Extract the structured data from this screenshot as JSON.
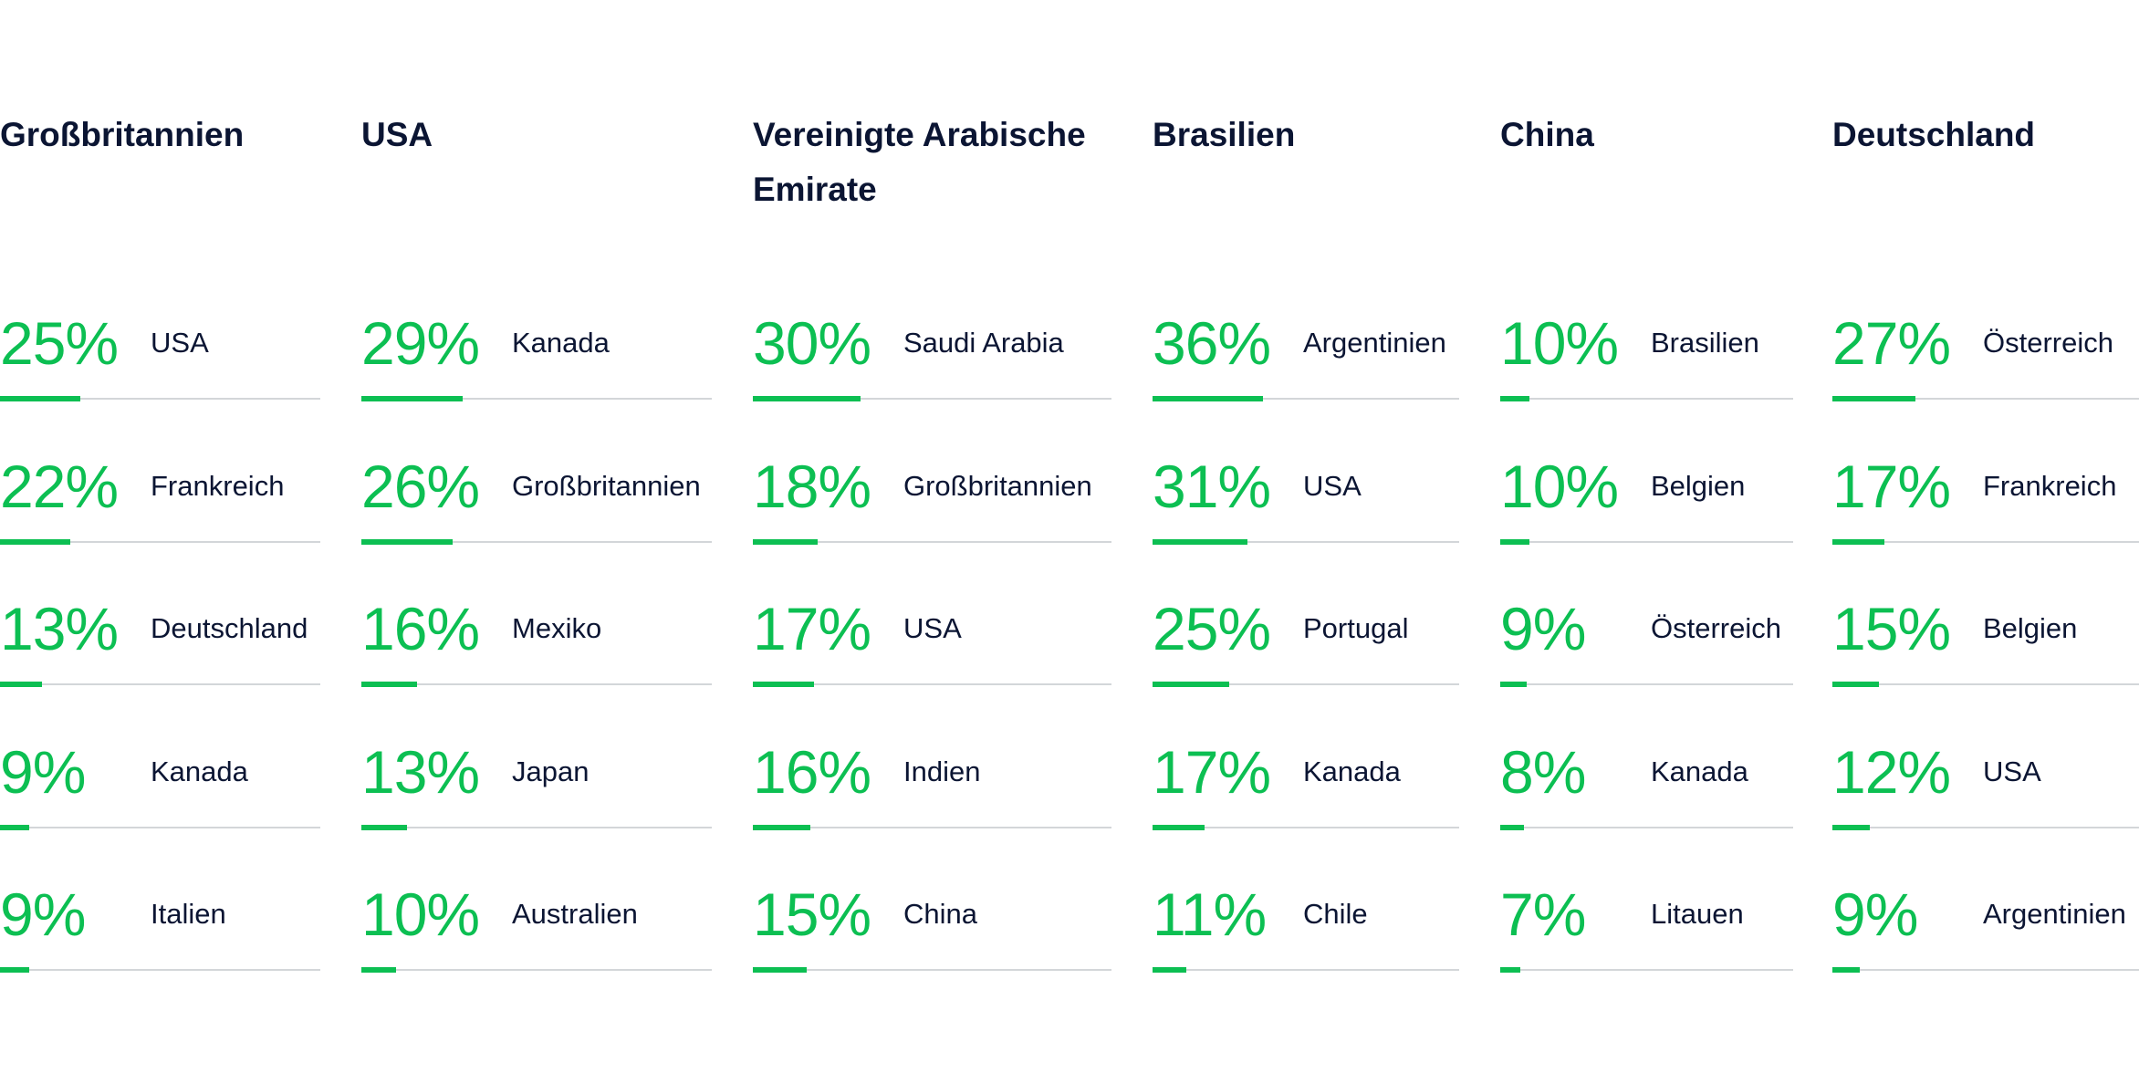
{
  "accent_color": "#0cbf52",
  "columns": [
    {
      "title": "Großbritannien",
      "rows": [
        {
          "value": 25,
          "label": "25%",
          "country": "USA"
        },
        {
          "value": 22,
          "label": "22%",
          "country": "Frankreich"
        },
        {
          "value": 13,
          "label": "13%",
          "country": "Deutschland"
        },
        {
          "value": 9,
          "label": "9%",
          "country": "Kanada"
        },
        {
          "value": 9,
          "label": "9%",
          "country": "Italien"
        }
      ]
    },
    {
      "title": "USA",
      "rows": [
        {
          "value": 29,
          "label": "29%",
          "country": "Kanada"
        },
        {
          "value": 26,
          "label": "26%",
          "country": "Großbritannien"
        },
        {
          "value": 16,
          "label": "16%",
          "country": "Mexiko"
        },
        {
          "value": 13,
          "label": "13%",
          "country": "Japan"
        },
        {
          "value": 10,
          "label": "10%",
          "country": "Australien"
        }
      ]
    },
    {
      "title": "Vereinigte Arabische Emirate",
      "rows": [
        {
          "value": 30,
          "label": "30%",
          "country": "Saudi Arabia"
        },
        {
          "value": 18,
          "label": "18%",
          "country": "Großbritannien"
        },
        {
          "value": 17,
          "label": "17%",
          "country": "USA"
        },
        {
          "value": 16,
          "label": "16%",
          "country": "Indien"
        },
        {
          "value": 15,
          "label": "15%",
          "country": "China"
        }
      ]
    },
    {
      "title": "Brasilien",
      "rows": [
        {
          "value": 36,
          "label": "36%",
          "country": "Argentinien"
        },
        {
          "value": 31,
          "label": "31%",
          "country": "USA"
        },
        {
          "value": 25,
          "label": "25%",
          "country": "Portugal"
        },
        {
          "value": 17,
          "label": "17%",
          "country": "Kanada"
        },
        {
          "value": 11,
          "label": "11%",
          "country": "Chile"
        }
      ]
    },
    {
      "title": "China",
      "rows": [
        {
          "value": 10,
          "label": "10%",
          "country": "Brasilien"
        },
        {
          "value": 10,
          "label": "10%",
          "country": "Belgien"
        },
        {
          "value": 9,
          "label": "9%",
          "country": "Österreich"
        },
        {
          "value": 8,
          "label": "8%",
          "country": "Kanada"
        },
        {
          "value": 7,
          "label": "7%",
          "country": "Litauen"
        }
      ]
    },
    {
      "title": "Deutschland",
      "rows": [
        {
          "value": 27,
          "label": "27%",
          "country": "Österreich"
        },
        {
          "value": 17,
          "label": "17%",
          "country": "Frankreich"
        },
        {
          "value": 15,
          "label": "15%",
          "country": "Belgien"
        },
        {
          "value": 12,
          "label": "12%",
          "country": "USA"
        },
        {
          "value": 9,
          "label": "9%",
          "country": "Argentinien"
        }
      ]
    }
  ]
}
